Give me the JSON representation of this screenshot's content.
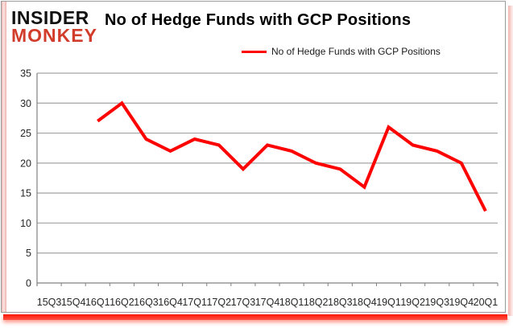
{
  "logo": {
    "line1": "INSIDER",
    "line2": "MONKEY",
    "color": "#d23c2a"
  },
  "header": {
    "title": "No of Hedge Funds with GCP Positions"
  },
  "legend": {
    "label": "No of Hedge Funds with GCP Positions",
    "line_color": "#ff0000"
  },
  "chart_data": {
    "type": "line",
    "title": "No of Hedge Funds with GCP Positions",
    "categories": [
      "15Q3",
      "15Q4",
      "16Q1",
      "16Q2",
      "16Q3",
      "16Q4",
      "17Q1",
      "17Q2",
      "17Q3",
      "17Q4",
      "18Q1",
      "18Q2",
      "18Q3",
      "18Q4",
      "19Q1",
      "19Q2",
      "19Q3",
      "19Q4",
      "20Q1"
    ],
    "series": [
      {
        "name": "No of Hedge Funds with GCP Positions",
        "color": "#ff0000",
        "values": [
          null,
          null,
          27,
          30,
          24,
          22,
          24,
          23,
          19,
          23,
          22,
          20,
          19,
          16,
          26,
          23,
          22,
          20,
          12
        ]
      }
    ],
    "xlabel": "",
    "ylabel": "",
    "ylim": [
      0,
      35
    ],
    "yticks": [
      0,
      5,
      10,
      15,
      20,
      25,
      30,
      35
    ],
    "grid": true,
    "legend_position": "top",
    "colors": {
      "gridline": "#a3a3a3",
      "axis": "#808080",
      "tick_text": "#262626"
    }
  }
}
